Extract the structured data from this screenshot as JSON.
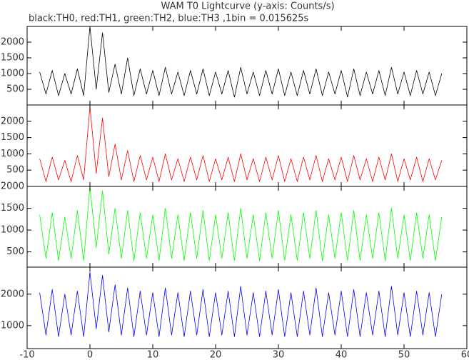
{
  "chart_data": [
    {
      "type": "line",
      "title": "WAM T0 Lightcurve (y-axis: Counts/s)",
      "subtitle": "black:TH0, red:TH1, green:TH2, blue:TH3 ,1bin = 0.015625s",
      "x": [
        -8,
        -7,
        -6,
        -5,
        -4,
        -3,
        -2,
        -1,
        0,
        1,
        2,
        3,
        4,
        5,
        6,
        7,
        8,
        9,
        10,
        11,
        12,
        13,
        14,
        15,
        16,
        17,
        18,
        19,
        20,
        21,
        22,
        23,
        24,
        25,
        26,
        27,
        28,
        29,
        30,
        31,
        32,
        33,
        34,
        35,
        36,
        37,
        38,
        39,
        40,
        41,
        42,
        43,
        44,
        45,
        46,
        47,
        48,
        49,
        50,
        51,
        52,
        53,
        54,
        55,
        56
      ],
      "series": [
        {
          "color": "#000000",
          "values": [
            1050,
            350,
            1100,
            300,
            1000,
            350,
            1150,
            300,
            2500,
            500,
            2300,
            400,
            1300,
            350,
            1500,
            300,
            1150,
            350,
            1100,
            300,
            1200,
            350,
            1050,
            300,
            1100,
            350,
            1150,
            300,
            1050,
            350,
            1100,
            250,
            1200,
            350,
            1050,
            300,
            1100,
            350,
            1150,
            300,
            1050,
            300,
            1100,
            350,
            1150,
            300,
            1050,
            350,
            1100,
            250,
            1150,
            300,
            1050,
            350,
            1100,
            300,
            1200,
            350,
            1050,
            300,
            1100,
            350,
            1050,
            300,
            1000
          ]
        }
      ],
      "ylim": [
        0,
        2500
      ],
      "yticks": [
        500,
        1000,
        1500,
        2000
      ]
    },
    {
      "type": "line",
      "x": [
        -8,
        -7,
        -6,
        -5,
        -4,
        -3,
        -2,
        -1,
        0,
        1,
        2,
        3,
        4,
        5,
        6,
        7,
        8,
        9,
        10,
        11,
        12,
        13,
        14,
        15,
        16,
        17,
        18,
        19,
        20,
        21,
        22,
        23,
        24,
        25,
        26,
        27,
        28,
        29,
        30,
        31,
        32,
        33,
        34,
        35,
        36,
        37,
        38,
        39,
        40,
        41,
        42,
        43,
        44,
        45,
        46,
        47,
        48,
        49,
        50,
        51,
        52,
        53,
        54,
        55,
        56
      ],
      "series": [
        {
          "color": "#ff0000",
          "values": [
            850,
            150,
            900,
            200,
            800,
            150,
            950,
            200,
            2450,
            400,
            2100,
            300,
            1300,
            200,
            1100,
            150,
            950,
            200,
            900,
            150,
            1000,
            200,
            850,
            150,
            900,
            200,
            950,
            150,
            850,
            200,
            900,
            150,
            1000,
            200,
            850,
            150,
            900,
            200,
            950,
            150,
            850,
            150,
            900,
            200,
            950,
            150,
            850,
            200,
            900,
            150,
            950,
            200,
            850,
            150,
            900,
            200,
            1000,
            150,
            850,
            200,
            900,
            150,
            850,
            200,
            800
          ]
        }
      ],
      "ylim": [
        0,
        2500
      ],
      "yticks": [
        500,
        1000,
        1500,
        2000
      ]
    },
    {
      "type": "line",
      "x": [
        -8,
        -7,
        -6,
        -5,
        -4,
        -3,
        -2,
        -1,
        0,
        1,
        2,
        3,
        4,
        5,
        6,
        7,
        8,
        9,
        10,
        11,
        12,
        13,
        14,
        15,
        16,
        17,
        18,
        19,
        20,
        21,
        22,
        23,
        24,
        25,
        26,
        27,
        28,
        29,
        30,
        31,
        32,
        33,
        34,
        35,
        36,
        37,
        38,
        39,
        40,
        41,
        42,
        43,
        44,
        45,
        46,
        47,
        48,
        49,
        50,
        51,
        52,
        53,
        54,
        55,
        56
      ],
      "series": [
        {
          "color": "#00ff00",
          "values": [
            1350,
            350,
            1400,
            300,
            1300,
            350,
            1450,
            300,
            2000,
            600,
            1900,
            450,
            1500,
            350,
            1450,
            300,
            1400,
            350,
            1350,
            300,
            1500,
            350,
            1350,
            300,
            1400,
            350,
            1450,
            300,
            1350,
            350,
            1400,
            300,
            1500,
            350,
            1350,
            300,
            1400,
            350,
            1450,
            300,
            1350,
            300,
            1400,
            350,
            1450,
            300,
            1350,
            350,
            1400,
            300,
            1450,
            300,
            1350,
            350,
            1400,
            300,
            1500,
            350,
            1350,
            300,
            1400,
            350,
            1350,
            300,
            1300
          ]
        }
      ],
      "ylim": [
        150,
        2000
      ],
      "yticks": [
        500,
        1000,
        1500,
        2000
      ]
    },
    {
      "type": "line",
      "x": [
        -8,
        -7,
        -6,
        -5,
        -4,
        -3,
        -2,
        -1,
        0,
        1,
        2,
        3,
        4,
        5,
        6,
        7,
        8,
        9,
        10,
        11,
        12,
        13,
        14,
        15,
        16,
        17,
        18,
        19,
        20,
        21,
        22,
        23,
        24,
        25,
        26,
        27,
        28,
        29,
        30,
        31,
        32,
        33,
        34,
        35,
        36,
        37,
        38,
        39,
        40,
        41,
        42,
        43,
        44,
        45,
        46,
        47,
        48,
        49,
        50,
        51,
        52,
        53,
        54,
        55,
        56
      ],
      "series": [
        {
          "color": "#0000ff",
          "values": [
            2050,
            700,
            2150,
            650,
            2000,
            700,
            2100,
            650,
            2700,
            900,
            2600,
            800,
            2300,
            700,
            2200,
            650,
            2100,
            700,
            2050,
            650,
            2200,
            700,
            2050,
            650,
            2100,
            700,
            2150,
            650,
            2050,
            700,
            2100,
            650,
            2250,
            700,
            2050,
            650,
            2100,
            700,
            2150,
            650,
            2050,
            650,
            2100,
            700,
            2200,
            650,
            2050,
            700,
            2100,
            650,
            2150,
            650,
            2050,
            700,
            2100,
            650,
            2250,
            700,
            2050,
            650,
            2100,
            700,
            2050,
            650,
            2000
          ]
        }
      ],
      "ylim": [
        270,
        2860
      ],
      "yticks": [
        1000,
        2000
      ],
      "xlim": [
        -10,
        60
      ],
      "xticks": [
        -10,
        0,
        10,
        20,
        30,
        40,
        50,
        60
      ]
    }
  ]
}
